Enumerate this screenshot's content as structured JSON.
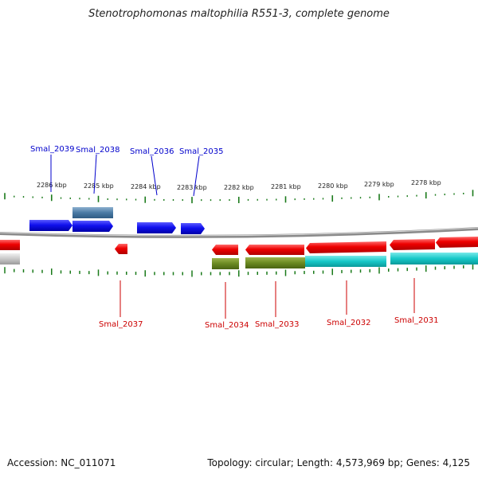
{
  "title": "Stenotrophomonas maltophilia R551-3, complete genome",
  "footer": {
    "accession": "Accession: NC_011071",
    "summary": "Topology: circular; Length: 4,573,969 bp; Genes: 4,125"
  },
  "colors": {
    "forward_label": "#0000cc",
    "reverse_label": "#cc0000",
    "tick": "#1a7a1a",
    "backbone": "#808080"
  },
  "scale_ticks": [
    "2286 kbp",
    "2285 kbp",
    "2284 kbp",
    "2283 kbp",
    "2282 kbp",
    "2281 kbp",
    "2280 kbp",
    "2279 kbp",
    "2278 kbp"
  ],
  "forward_labels": [
    "Smal_2039",
    "Smal_2038",
    "Smal_2036",
    "Smal_2035"
  ],
  "reverse_labels": [
    "Smal_2037",
    "Smal_2034",
    "Smal_2033",
    "Smal_2032",
    "Smal_2031"
  ]
}
